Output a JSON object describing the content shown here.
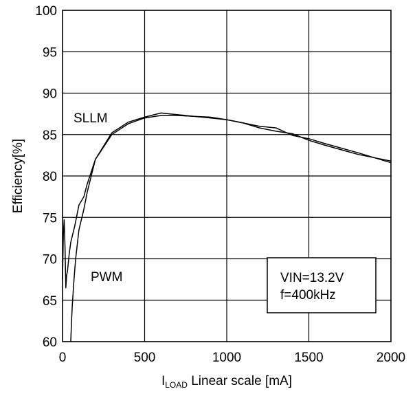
{
  "chart_data": {
    "type": "line",
    "xlabel": {
      "main": "I",
      "sub": "LOAD",
      "rest": " Linear scale [mA]"
    },
    "ylabel": "Efficiency[%]",
    "xlim": [
      0,
      2000
    ],
    "ylim": [
      60,
      100
    ],
    "xticks": [
      "0",
      "500",
      "1000",
      "1500",
      "2000"
    ],
    "yticks": [
      "60",
      "65",
      "70",
      "75",
      "80",
      "85",
      "90",
      "95",
      "100"
    ],
    "grid": true,
    "annotations": {
      "sllm": "SLLM",
      "pwm": "PWM",
      "box_line1": "VIN=13.2V",
      "box_line2": "f=400kHz"
    },
    "series": [
      {
        "name": "SLLM",
        "x": [
          0,
          5,
          10,
          15,
          20,
          25,
          30,
          40,
          50,
          75,
          100,
          130,
          150,
          200,
          300,
          400,
          500,
          600,
          700,
          800,
          900,
          1000,
          1100,
          1200,
          1300,
          1400,
          1500,
          1600,
          1800,
          2000
        ],
        "y": [
          67.5,
          73.0,
          74.7,
          71.5,
          66.5,
          68.0,
          68.5,
          70.5,
          72.0,
          74.0,
          76.5,
          77.5,
          79.0,
          82.0,
          85.2,
          86.5,
          87.1,
          87.6,
          87.4,
          87.2,
          87.1,
          86.8,
          86.4,
          86.0,
          85.8,
          84.9,
          84.5,
          83.9,
          82.8,
          81.6
        ]
      },
      {
        "name": "PWM",
        "x": [
          50,
          55,
          60,
          70,
          80,
          100,
          130,
          150,
          200,
          300,
          400,
          500,
          600,
          700,
          800,
          900,
          1000,
          1100,
          1200,
          1300,
          1400,
          1500,
          1600,
          1800,
          2000
        ],
        "y": [
          60.0,
          62.5,
          64.5,
          67.5,
          70.0,
          73.5,
          76.0,
          78.0,
          82.0,
          85.0,
          86.3,
          87.0,
          87.3,
          87.3,
          87.2,
          87.0,
          86.8,
          86.4,
          85.8,
          85.4,
          85.1,
          84.3,
          83.7,
          82.6,
          81.8
        ]
      }
    ]
  }
}
